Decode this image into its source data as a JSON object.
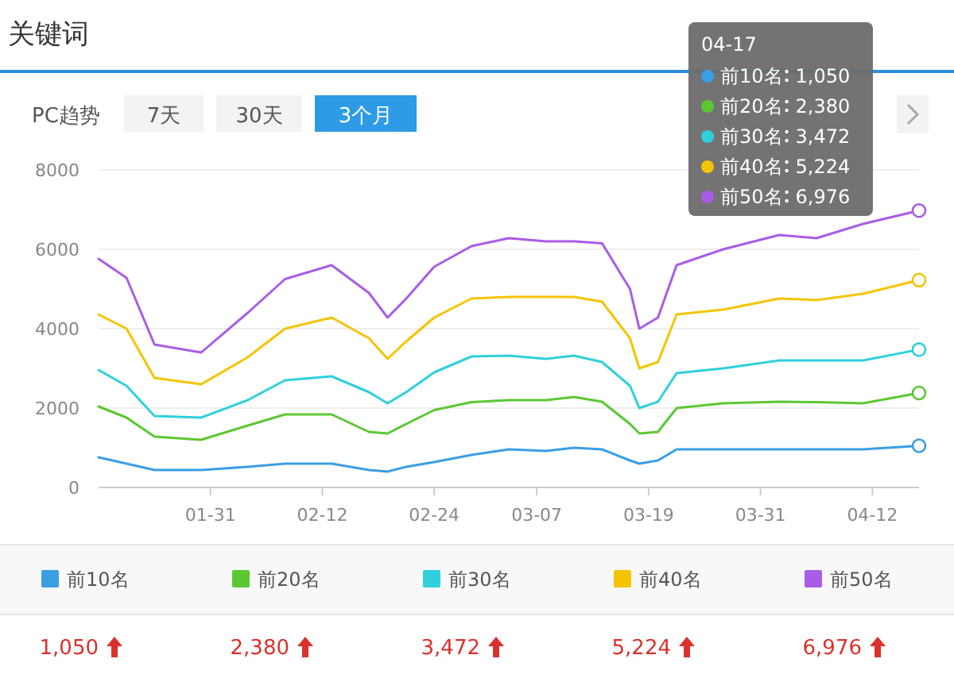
{
  "chart_data": {
    "type": "line",
    "title": "关键词",
    "annotations": [
      "PC趋势",
      "7天",
      "30天",
      "3个月",
      "04-17",
      "1,050",
      "2,380",
      "3,472",
      "5,224",
      "6,976"
    ],
    "x": [
      "--01-19",
      "--01-22",
      "--01-25",
      "--01-30",
      "--02-04",
      "--02-08",
      "--02-13",
      "--02-17",
      "--02-19",
      "--02-21",
      "--02-24",
      "--02-28",
      "--03-04",
      "--03-08",
      "--03-11",
      "--03-14",
      "--03-17",
      "--03-18",
      "--03-20",
      "--03-22",
      "--03-27",
      "--04-02",
      "--04-06",
      "--04-11",
      "--04-17"
    ],
    "xlim": [
      "--01-19",
      "--04-17"
    ],
    "xticks": [
      {
        "value": "--01-31",
        "label": "01-31"
      },
      {
        "value": "--02-12",
        "label": "02-12"
      },
      {
        "value": "--02-24",
        "label": "02-24"
      },
      {
        "value": "--03-07",
        "label": "03-07"
      },
      {
        "value": "--03-19",
        "label": "03-19"
      },
      {
        "value": "--03-31",
        "label": "03-31"
      },
      {
        "value": "--04-12",
        "label": "04-12"
      }
    ],
    "ylim": [
      0,
      8000
    ],
    "yticks": [
      0,
      2000,
      4000,
      6000,
      8000
    ],
    "grid": "y",
    "legend": "bottom",
    "marker": "none",
    "line_style": "solid",
    "series": [
      {
        "name": "前10名",
        "color": "#3a9ee4",
        "values": [
          760,
          600,
          440,
          440,
          520,
          600,
          600,
          440,
          400,
          520,
          640,
          820,
          960,
          920,
          1000,
          960,
          680,
          600,
          680,
          960,
          960,
          960,
          960,
          960,
          1050
        ]
      },
      {
        "name": "前20名",
        "color": "#5cc734",
        "values": [
          2040,
          1760,
          1280,
          1200,
          1560,
          1840,
          1840,
          1400,
          1360,
          1600,
          1950,
          2150,
          2200,
          2200,
          2280,
          2160,
          1600,
          1360,
          1400,
          2000,
          2120,
          2160,
          2150,
          2120,
          2380
        ]
      },
      {
        "name": "前30名",
        "color": "#2fd0dc",
        "values": [
          2960,
          2560,
          1800,
          1760,
          2200,
          2700,
          2800,
          2400,
          2120,
          2400,
          2900,
          3300,
          3320,
          3240,
          3320,
          3160,
          2560,
          2000,
          2160,
          2880,
          3000,
          3200,
          3200,
          3200,
          3472
        ]
      },
      {
        "name": "前40名",
        "color": "#f5c400",
        "values": [
          4360,
          4000,
          2760,
          2600,
          3280,
          4000,
          4280,
          3760,
          3240,
          3680,
          4280,
          4760,
          4800,
          4800,
          4800,
          4680,
          3760,
          3000,
          3160,
          4360,
          4480,
          4760,
          4720,
          4880,
          5224
        ]
      },
      {
        "name": "前50名",
        "color": "#a95de6",
        "values": [
          5760,
          5280,
          3600,
          3400,
          4400,
          5250,
          5600,
          4900,
          4280,
          4760,
          5560,
          6080,
          6280,
          6200,
          6200,
          6150,
          5000,
          4000,
          4280,
          5600,
          6000,
          6360,
          6280,
          6640,
          6976
        ]
      }
    ]
  }
}
